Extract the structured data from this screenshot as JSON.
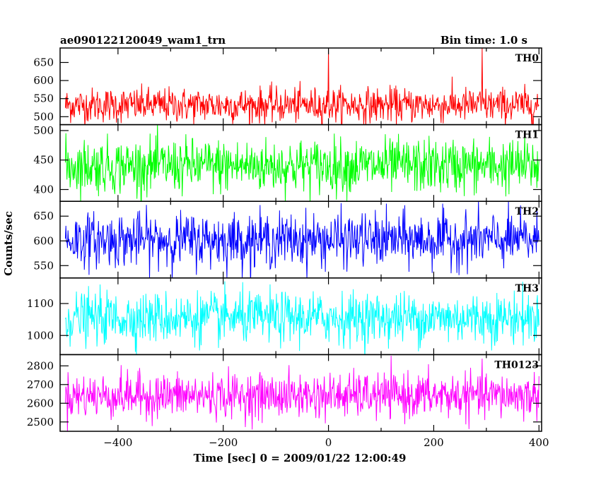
{
  "header": {
    "title": "ae090122120049_wam1_trn",
    "bin_time": "Bin time: 1.0 s"
  },
  "chart_data": {
    "type": "line",
    "xlabel": "Time [sec] 0 = 2009/01/22 12:00:49",
    "ylabel": "Counts/sec",
    "xlim": [
      -510,
      405
    ],
    "x_ticks": [
      -400,
      -200,
      0,
      200,
      400
    ],
    "x_tick_labels": [
      "−400",
      "−200",
      "0",
      "200",
      "400"
    ],
    "bin_time_s": 1.0,
    "panels": [
      {
        "name": "TH0",
        "color": "#ff0000",
        "ylim": [
          478,
          690
        ],
        "y_ticks": [
          500,
          550,
          600,
          650
        ],
        "y_tick_labels": [
          "500",
          "550",
          "600",
          "650"
        ],
        "mean": 532,
        "noise": 24,
        "x_start": -500,
        "x_end": 400,
        "spikes": [
          {
            "x": 0,
            "y": 690
          },
          {
            "x": 292,
            "y": 690
          }
        ]
      },
      {
        "name": "TH1",
        "color": "#00ff00",
        "ylim": [
          380,
          510
        ],
        "y_ticks": [
          400,
          450,
          500
        ],
        "y_tick_labels": [
          "400",
          "450",
          "500"
        ],
        "mean": 440,
        "noise": 23,
        "x_start": -500,
        "x_end": 400,
        "spikes": []
      },
      {
        "name": "TH2",
        "color": "#0000ff",
        "ylim": [
          525,
          680
        ],
        "y_ticks": [
          550,
          600,
          650
        ],
        "y_tick_labels": [
          "550",
          "600",
          "650"
        ],
        "mean": 602,
        "noise": 27,
        "x_start": -500,
        "x_end": 400,
        "spikes": []
      },
      {
        "name": "TH3",
        "color": "#00ffff",
        "ylim": [
          940,
          1180
        ],
        "y_ticks": [
          1000,
          1100
        ],
        "y_tick_labels": [
          "1000",
          "1100"
        ],
        "mean": 1055,
        "noise": 40,
        "x_start": -500,
        "x_end": 400,
        "spikes": []
      },
      {
        "name": "TH0123",
        "color": "#ff00ff",
        "ylim": [
          2450,
          2860
        ],
        "y_ticks": [
          2500,
          2600,
          2700,
          2800
        ],
        "y_tick_labels": [
          "2500",
          "2600",
          "2700",
          "2800"
        ],
        "mean": 2640,
        "noise": 60,
        "x_start": -500,
        "x_end": 400,
        "spikes": []
      }
    ]
  }
}
